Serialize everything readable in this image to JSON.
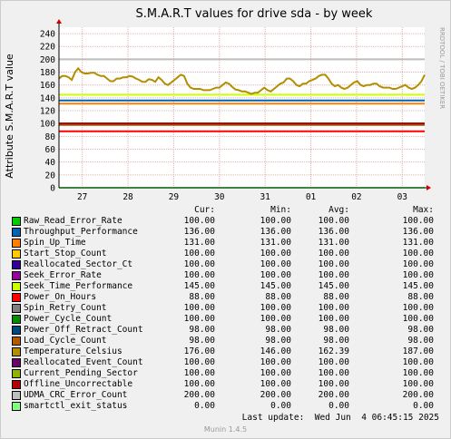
{
  "watermark": "RRDTOOL / TOBI OETIKER",
  "last_update": "Last update:  Wed Jun  4 06:45:15 2025",
  "footer": "Munin 1.4.5",
  "legend_headers": [
    "Cur:",
    "Min:",
    "Avg:",
    "Max:"
  ],
  "chart_data": {
    "type": "line",
    "title": "S.M.A.R.T values for drive sda - by week",
    "ylabel": "Attribute S.M.A.R.T value",
    "xlabel": "",
    "ylim": [
      0,
      250
    ],
    "yticks": [
      0,
      20,
      40,
      60,
      80,
      100,
      120,
      140,
      160,
      180,
      200,
      220,
      240
    ],
    "xtick_labels": [
      "27",
      "28",
      "29",
      "30",
      "31",
      "01",
      "02",
      "03"
    ],
    "grid": true,
    "series": [
      {
        "name": "Raw_Read_Error_Rate",
        "color": "#00cc00",
        "cur": "100.00",
        "min": "100.00",
        "avg": "100.00",
        "max": "100.00",
        "values": [
          100
        ]
      },
      {
        "name": "Throughput_Performance",
        "color": "#0066b3",
        "cur": "136.00",
        "min": "136.00",
        "avg": "136.00",
        "max": "136.00",
        "values": [
          136
        ]
      },
      {
        "name": "Spin_Up_Time",
        "color": "#ff8000",
        "cur": "131.00",
        "min": "131.00",
        "avg": "131.00",
        "max": "131.00",
        "values": [
          131
        ]
      },
      {
        "name": "Start_Stop_Count",
        "color": "#ffcc00",
        "cur": "100.00",
        "min": "100.00",
        "avg": "100.00",
        "max": "100.00",
        "values": [
          100
        ]
      },
      {
        "name": "Reallocated_Sector_Ct",
        "color": "#330099",
        "cur": "100.00",
        "min": "100.00",
        "avg": "100.00",
        "max": "100.00",
        "values": [
          100
        ]
      },
      {
        "name": "Seek_Error_Rate",
        "color": "#990099",
        "cur": "100.00",
        "min": "100.00",
        "avg": "100.00",
        "max": "100.00",
        "values": [
          100
        ]
      },
      {
        "name": "Seek_Time_Performance",
        "color": "#ccff00",
        "cur": "145.00",
        "min": "145.00",
        "avg": "145.00",
        "max": "145.00",
        "values": [
          145
        ]
      },
      {
        "name": "Power_On_Hours",
        "color": "#ff0000",
        "cur": "88.00",
        "min": "88.00",
        "avg": "88.00",
        "max": "88.00",
        "values": [
          88
        ]
      },
      {
        "name": "Spin_Retry_Count",
        "color": "#808080",
        "cur": "100.00",
        "min": "100.00",
        "avg": "100.00",
        "max": "100.00",
        "values": [
          100
        ]
      },
      {
        "name": "Power_Cycle_Count",
        "color": "#008f00",
        "cur": "100.00",
        "min": "100.00",
        "avg": "100.00",
        "max": "100.00",
        "values": [
          100
        ]
      },
      {
        "name": "Power_Off_Retract_Count",
        "color": "#00487d",
        "cur": "98.00",
        "min": "98.00",
        "avg": "98.00",
        "max": "98.00",
        "values": [
          98
        ]
      },
      {
        "name": "Load_Cycle_Count",
        "color": "#b35a00",
        "cur": "98.00",
        "min": "98.00",
        "avg": "98.00",
        "max": "98.00",
        "values": [
          98
        ]
      },
      {
        "name": "Temperature_Celsius",
        "color": "#b38f00",
        "cur": "176.00",
        "min": "146.00",
        "avg": "162.39",
        "max": "187.00",
        "values": [
          170,
          174,
          174,
          172,
          168,
          180,
          186,
          180,
          178,
          178,
          179,
          179,
          176,
          174,
          174,
          170,
          166,
          166,
          170,
          170,
          172,
          172,
          174,
          173,
          170,
          168,
          165,
          165,
          169,
          168,
          165,
          172,
          168,
          162,
          160,
          164,
          168,
          172,
          176,
          174,
          162,
          156,
          154,
          154,
          154,
          152,
          152,
          152,
          154,
          156,
          156,
          160,
          164,
          162,
          157,
          153,
          152,
          150,
          150,
          148,
          146,
          148,
          148,
          152,
          156,
          152,
          150,
          154,
          158,
          162,
          164,
          170,
          170,
          166,
          160,
          158,
          162,
          162,
          166,
          168,
          170,
          174,
          176,
          176,
          170,
          162,
          158,
          160,
          156,
          154,
          156,
          160,
          164,
          166,
          160,
          158,
          160,
          160,
          162,
          162,
          158,
          156,
          156,
          156,
          154,
          154,
          156,
          158,
          160,
          156,
          154,
          156,
          160,
          166,
          176
        ]
      },
      {
        "name": "Reallocated_Event_Count",
        "color": "#6b006b",
        "cur": "100.00",
        "min": "100.00",
        "avg": "100.00",
        "max": "100.00",
        "values": [
          100
        ]
      },
      {
        "name": "Current_Pending_Sector",
        "color": "#8fb300",
        "cur": "100.00",
        "min": "100.00",
        "avg": "100.00",
        "max": "100.00",
        "values": [
          100
        ]
      },
      {
        "name": "Offline_Uncorrectable",
        "color": "#b30000",
        "cur": "100.00",
        "min": "100.00",
        "avg": "100.00",
        "max": "100.00",
        "values": [
          100
        ]
      },
      {
        "name": "UDMA_CRC_Error_Count",
        "color": "#bebebe",
        "cur": "200.00",
        "min": "200.00",
        "avg": "200.00",
        "max": "200.00",
        "values": [
          200
        ]
      },
      {
        "name": "smartctl_exit_status",
        "color": "#80ff80",
        "cur": "0.00",
        "min": "0.00",
        "avg": "0.00",
        "max": "0.00",
        "values": [
          0
        ]
      }
    ]
  }
}
